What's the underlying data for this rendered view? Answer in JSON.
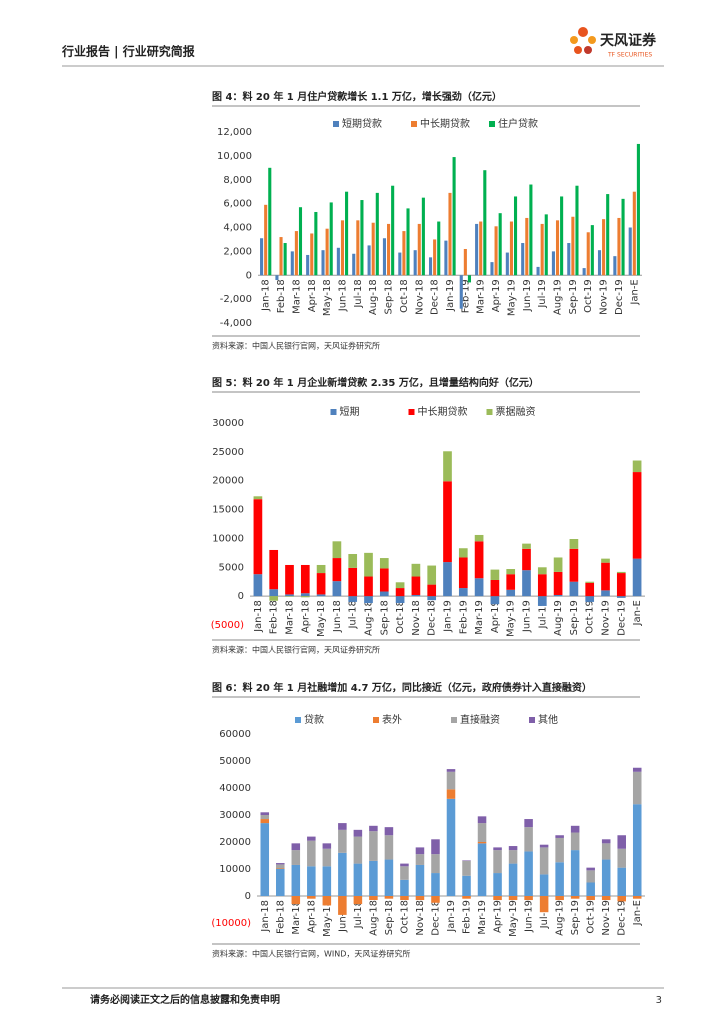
{
  "header": {
    "title": "行业报告 | 行业研究简报",
    "logo_cn": "天风证券",
    "logo_en": "TF SECURITIES"
  },
  "footer": {
    "disclaimer": "请务必阅读正文之后的信息披露和免责申明",
    "page": "3"
  },
  "chart_data": [
    {
      "type": "bar",
      "title": "图 4：料 20 年 1 月住户贷款增长 1.1 万亿，增长强劲（亿元）",
      "source": "资料来源：中国人民银行官网，天风证券研究所",
      "categories": [
        "Jan-18",
        "Feb-18",
        "Mar-18",
        "Apr-18",
        "May-18",
        "Jun-18",
        "Jul-18",
        "Aug-18",
        "Sep-18",
        "Oct-18",
        "Nov-18",
        "Dec-18",
        "Jan-19",
        "Feb-19",
        "Mar-19",
        "Apr-19",
        "May-19",
        "Jun-19",
        "Jul-19",
        "Aug-19",
        "Sep-19",
        "Oct-19",
        "Nov-19",
        "Dec-19",
        "Jan-E"
      ],
      "series": [
        {
          "name": "短期贷款",
          "color": "#4f81bd",
          "values": [
            3100,
            -400,
            2000,
            1700,
            2100,
            2300,
            1800,
            2500,
            3100,
            1900,
            2100,
            1500,
            2900,
            -2800,
            4300,
            1100,
            1900,
            2700,
            700,
            2000,
            2700,
            600,
            2100,
            1600,
            4000
          ]
        },
        {
          "name": "中长期贷款",
          "color": "#ed7d31",
          "values": [
            5900,
            3200,
            3700,
            3500,
            3900,
            4600,
            4600,
            4400,
            4300,
            3700,
            4300,
            3000,
            6900,
            2200,
            4500,
            4100,
            4500,
            4800,
            4300,
            4600,
            4900,
            3600,
            4700,
            4800,
            7000
          ]
        },
        {
          "name": "住户贷款",
          "color": "#00b050",
          "values": [
            9000,
            2700,
            5700,
            5300,
            6100,
            7000,
            6300,
            6900,
            7500,
            5600,
            6500,
            4500,
            9900,
            -600,
            8800,
            5200,
            6600,
            7600,
            5100,
            6600,
            7500,
            4200,
            6800,
            6400,
            11000
          ]
        }
      ],
      "ylim": [
        -4000,
        12000
      ],
      "yticks": [
        {
          "value": -4000,
          "label": "-4,000"
        },
        {
          "value": -2000,
          "label": "-2,000"
        },
        0,
        {
          "value": 2000,
          "label": "2,000"
        },
        {
          "value": 4000,
          "label": "4,000"
        },
        {
          "value": 6000,
          "label": "6,000"
        },
        {
          "value": 8000,
          "label": "8,000"
        },
        {
          "value": 10000,
          "label": "10,000"
        },
        {
          "value": 12000,
          "label": "12,000"
        }
      ]
    },
    {
      "type": "stacked_bar",
      "title": "图 5：料 20 年 1 月企业新增贷款 2.35 万亿，且增量结构向好（亿元）",
      "source": "资料来源：中国人民银行官网，天风证券研究所",
      "categories": [
        "Jan-18",
        "Feb-18",
        "Mar-18",
        "Apr-18",
        "May-18",
        "Jun-18",
        "Jul-18",
        "Aug-18",
        "Sep-18",
        "Oct-18",
        "Nov-18",
        "Dec-18",
        "Jan-19",
        "Feb-19",
        "Mar-19",
        "Apr-19",
        "May-19",
        "Jun-19",
        "Jul-19",
        "Aug-19",
        "Sep-19",
        "Oct-19",
        "Nov-19",
        "Dec-19",
        "Jan-E"
      ],
      "series": [
        {
          "name": "短期",
          "color": "#4f81bd",
          "values": [
            3800,
            1200,
            300,
            500,
            300,
            2600,
            -1000,
            -1200,
            800,
            -1200,
            200,
            -700,
            5900,
            1400,
            3100,
            -1400,
            1100,
            4500,
            -1700,
            200,
            2500,
            -1000,
            1000,
            -300,
            6500
          ]
        },
        {
          "name": "中长期贷款",
          "color": "#ff0000",
          "values": [
            13000,
            6800,
            5100,
            4900,
            3700,
            4000,
            4900,
            3400,
            4000,
            1400,
            3200,
            2000,
            14000,
            5300,
            6400,
            2800,
            2700,
            3700,
            3800,
            4000,
            5700,
            2300,
            4800,
            4000,
            15000
          ]
        },
        {
          "name": "票据融资",
          "color": "#9bbb59",
          "values": [
            500,
            -800,
            -100,
            -200,
            1400,
            2900,
            2400,
            4100,
            1800,
            1000,
            2200,
            3300,
            5200,
            1600,
            1100,
            1800,
            900,
            900,
            1200,
            2500,
            1700,
            200,
            700,
            200,
            2000
          ]
        }
      ],
      "ylim": [
        -5000,
        30000
      ],
      "negative_tick_color": "#ff0000",
      "yticks": [
        {
          "value": -5000,
          "label": "(5000)"
        },
        0,
        5000,
        10000,
        15000,
        20000,
        25000,
        30000
      ]
    },
    {
      "type": "stacked_bar",
      "title": "图 6：料 20 年 1 月社融增加 4.7 万亿，同比接近（亿元，政府债券计入直接融资）",
      "source": "资料来源：中国人民银行官网，WIND，天风证券研究所",
      "categories": [
        "Jan-18",
        "Feb-18",
        "Mar-18",
        "Apr-18",
        "May-18",
        "Jun-18",
        "Jul-18",
        "Aug-18",
        "Sep-18",
        "Oct-18",
        "Nov-18",
        "Dec-18",
        "Jan-19",
        "Feb-19",
        "Mar-19",
        "Apr-19",
        "May-19",
        "Jun-19",
        "Jul-19",
        "Aug-19",
        "Sep-19",
        "Oct-19",
        "Nov-19",
        "Dec-19",
        "Jan-E"
      ],
      "series": [
        {
          "name": "贷款",
          "color": "#5b9bd5",
          "values": [
            27000,
            10000,
            11500,
            11000,
            11000,
            16000,
            12000,
            13000,
            13500,
            6000,
            11500,
            8500,
            36000,
            7500,
            19500,
            8500,
            12000,
            16500,
            8000,
            12500,
            17000,
            5000,
            13500,
            10500,
            34000
          ]
        },
        {
          "name": "表外",
          "color": "#ed7d31",
          "values": [
            1500,
            200,
            -3000,
            -1000,
            -3500,
            -7000,
            -3000,
            -1500,
            -1000,
            -1500,
            -1500,
            -2500,
            3500,
            -1000,
            500,
            -1500,
            -1500,
            -1500,
            -6000,
            -1500,
            -1000,
            -1500,
            -1500,
            -2000,
            -1000
          ]
        },
        {
          "name": "直接融资",
          "color": "#a5a5a5",
          "values": [
            1500,
            1500,
            5500,
            9500,
            6500,
            8500,
            10000,
            11000,
            9000,
            5000,
            4000,
            7000,
            6500,
            5500,
            7000,
            8500,
            5000,
            9000,
            10000,
            9000,
            6500,
            4500,
            6000,
            7000,
            12000
          ]
        },
        {
          "name": "其他",
          "color": "#7f5fa9",
          "values": [
            1000,
            500,
            2500,
            1500,
            2000,
            2500,
            2500,
            2000,
            3000,
            1000,
            2500,
            5500,
            1000,
            200,
            2500,
            1000,
            1500,
            3000,
            1000,
            1000,
            2500,
            1000,
            1500,
            5000,
            1500
          ]
        }
      ],
      "ylim": [
        -10000,
        60000
      ],
      "negative_tick_color": "#ff0000",
      "yticks": [
        {
          "value": -10000,
          "label": "(10000)"
        },
        0,
        10000,
        20000,
        30000,
        40000,
        50000,
        60000
      ]
    }
  ]
}
